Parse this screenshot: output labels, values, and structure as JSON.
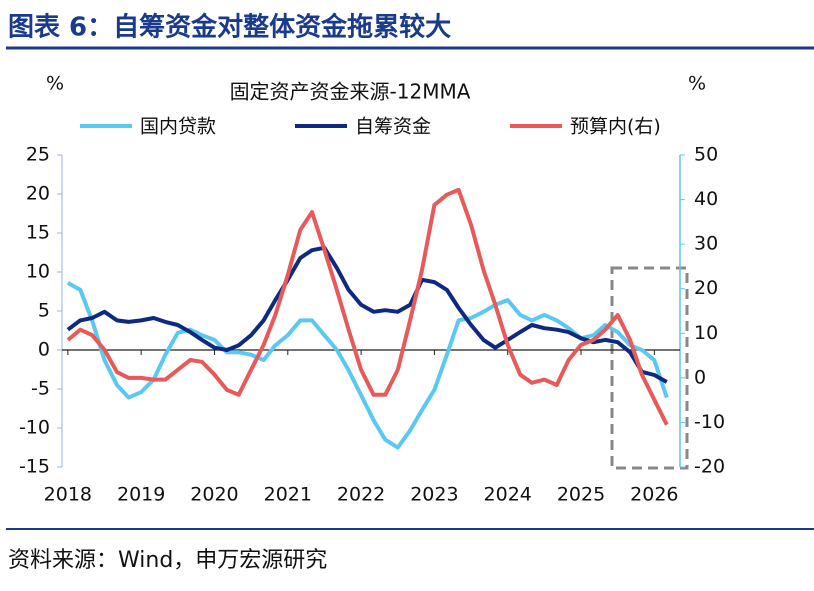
{
  "figure_title": "图表 6：自筹资金对整体资金拖累较大",
  "source": "资料来源：Wind，申万宏源研究",
  "chart_data": {
    "type": "line",
    "title": "固定资产资金来源-12MMA",
    "y_label": "%",
    "y2_label": "%",
    "x": [
      2018,
      2018.17,
      2018.33,
      2018.5,
      2018.67,
      2018.83,
      2019,
      2019.17,
      2019.33,
      2019.5,
      2019.67,
      2019.83,
      2020,
      2020.17,
      2020.33,
      2020.5,
      2020.67,
      2020.83,
      2021,
      2021.17,
      2021.33,
      2021.5,
      2021.67,
      2021.83,
      2022,
      2022.17,
      2022.33,
      2022.5,
      2022.67,
      2022.83,
      2023,
      2023.17,
      2023.33,
      2023.5,
      2023.67,
      2023.83,
      2024,
      2024.17,
      2024.33,
      2024.5,
      2024.67,
      2024.83,
      2025,
      2025.17,
      2025.33,
      2025.5,
      2025.67,
      2025.83,
      2026,
      2026.17
    ],
    "xlim": [
      2017.92,
      2026.35
    ],
    "xticks": [
      2018,
      2019,
      2020,
      2021,
      2022,
      2023,
      2024,
      2025,
      2026
    ],
    "ylim": [
      -15,
      25
    ],
    "yticks": [
      -15,
      -10,
      -5,
      0,
      5,
      10,
      15,
      20,
      25
    ],
    "y2lim": [
      -20,
      50
    ],
    "y2ticks": [
      -20,
      -10,
      0,
      10,
      20,
      30,
      40,
      50
    ],
    "series": [
      {
        "name": "国内贷款",
        "color": "#5bc8f0",
        "values": [
          8.6,
          7.7,
          3.8,
          -1.3,
          -4.5,
          -6.1,
          -5.4,
          -3.8,
          -0.6,
          2.2,
          2.6,
          1.9,
          1.3,
          -0.3,
          -0.3,
          -0.6,
          -1.3,
          0.6,
          1.9,
          3.8,
          3.8,
          1.9,
          0,
          -2.6,
          -5.8,
          -9,
          -11.5,
          -12.5,
          -10.3,
          -7.7,
          -5.1,
          -0.6,
          3.8,
          4.1,
          4.9,
          5.8,
          6.4,
          4.5,
          3.8,
          4.5,
          3.8,
          2.8,
          1.5,
          1.9,
          3.2,
          2.3,
          0.6,
          0,
          -1.3,
          -6.1
        ]
      },
      {
        "name": "自筹资金",
        "color": "#0d2a80",
        "values": [
          2.6,
          3.8,
          4.1,
          4.9,
          3.8,
          3.6,
          3.8,
          4.1,
          3.6,
          3.2,
          2.3,
          1.3,
          0.3,
          0,
          0.6,
          1.9,
          3.8,
          6.4,
          9,
          11.8,
          12.8,
          13.1,
          10.5,
          7.7,
          5.8,
          4.9,
          5.1,
          4.9,
          5.8,
          9,
          8.7,
          7.7,
          5.4,
          3.2,
          1.3,
          0.3,
          1.3,
          2.3,
          3.2,
          2.8,
          2.6,
          2.3,
          1.5,
          1,
          1.3,
          1,
          -0.3,
          -2.8,
          -3.2,
          -4.1
        ]
      },
      {
        "name": "预算内(右)",
        "color": "#e85a5a",
        "axis": "y2",
        "values": [
          8.5,
          10.8,
          9.6,
          6.3,
          1.3,
          0,
          0,
          -0.4,
          -0.4,
          1.8,
          4,
          3.6,
          0.7,
          -2.7,
          -3.8,
          1.8,
          7.4,
          14.1,
          23.1,
          33.2,
          37.2,
          28.7,
          19.7,
          10.8,
          1.8,
          -3.8,
          -3.8,
          1.8,
          13,
          24.2,
          38.8,
          41.1,
          42.2,
          34.3,
          24.2,
          16.4,
          7.4,
          0.7,
          -1.1,
          -0.4,
          -1.6,
          4,
          7.4,
          8.5,
          10.8,
          14.1,
          8.5,
          0.7,
          -4.9,
          -10.5
        ]
      }
    ]
  }
}
